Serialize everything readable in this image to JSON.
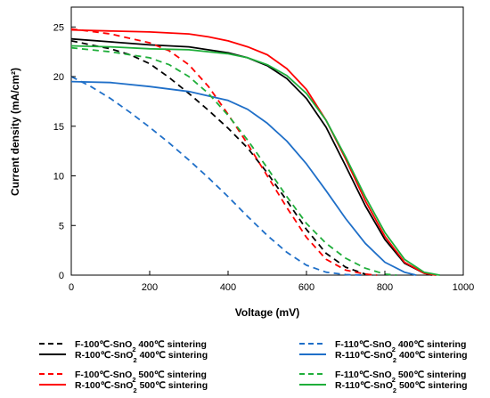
{
  "chart_data": {
    "type": "line",
    "title": "",
    "xlabel": "Voltage (mV)",
    "ylabel": "Current density (mA/cm²)",
    "xlim": [
      0,
      1000
    ],
    "ylim": [
      0,
      27
    ],
    "xticks": [
      0,
      200,
      400,
      600,
      800,
      1000
    ],
    "yticks": [
      0,
      5,
      10,
      15,
      20,
      25
    ],
    "grid": false,
    "legend_position": "bottom",
    "series": [
      {
        "name_parts": [
          "F-100℃-SnO",
          "2",
          " 400℃ sintering"
        ],
        "color": "#000000",
        "dash": true,
        "x": [
          0,
          50,
          100,
          150,
          200,
          250,
          300,
          350,
          400,
          450,
          500,
          550,
          600,
          650,
          700,
          750,
          770
        ],
        "y": [
          23.6,
          23.2,
          22.8,
          22.2,
          21.3,
          19.9,
          18.3,
          16.6,
          14.8,
          12.8,
          10.3,
          7.5,
          4.6,
          2.2,
          0.8,
          0.1,
          0
        ]
      },
      {
        "name_parts": [
          "R-100℃-SnO",
          "2",
          " 400℃ sintering"
        ],
        "color": "#000000",
        "dash": false,
        "x": [
          0,
          100,
          200,
          300,
          400,
          450,
          500,
          550,
          600,
          650,
          700,
          750,
          800,
          850,
          900,
          920
        ],
        "y": [
          23.8,
          23.5,
          23.2,
          23.0,
          22.4,
          21.9,
          21.1,
          19.8,
          17.8,
          14.9,
          11.0,
          7.0,
          3.6,
          1.2,
          0.2,
          0
        ]
      },
      {
        "name_parts": [
          "R-100℃-SnO",
          "2",
          " 500℃ sintering"
        ],
        "color": "#ff0000",
        "dash": false,
        "x": [
          0,
          100,
          200,
          300,
          350,
          400,
          450,
          500,
          550,
          600,
          650,
          700,
          750,
          800,
          850,
          900,
          930
        ],
        "y": [
          24.7,
          24.6,
          24.5,
          24.3,
          24.0,
          23.6,
          23.0,
          22.2,
          20.8,
          18.7,
          15.6,
          11.7,
          7.5,
          3.9,
          1.3,
          0.2,
          0
        ]
      },
      {
        "name_parts": [
          "F-100℃-SnO",
          "2",
          " 500℃ sintering"
        ],
        "color": "#ff0000",
        "dash": true,
        "x": [
          0,
          100,
          200,
          250,
          300,
          350,
          400,
          450,
          500,
          550,
          600,
          650,
          700,
          750,
          780
        ],
        "y": [
          24.8,
          24.3,
          23.4,
          22.6,
          21.2,
          19.0,
          16.2,
          13.2,
          10.0,
          6.8,
          3.8,
          1.6,
          0.5,
          0.1,
          0
        ]
      },
      {
        "name_parts": [
          "R-110℃-SnO",
          "2",
          " 400℃ sintering"
        ],
        "color": "#1f6fc8",
        "dash": false,
        "x": [
          0,
          100,
          200,
          300,
          400,
          450,
          500,
          550,
          600,
          650,
          700,
          750,
          800,
          850,
          880
        ],
        "y": [
          19.5,
          19.4,
          19.0,
          18.5,
          17.6,
          16.7,
          15.3,
          13.5,
          11.2,
          8.5,
          5.7,
          3.2,
          1.3,
          0.3,
          0
        ]
      },
      {
        "name_parts": [
          "F-110℃-SnO",
          "2",
          " 400℃ sintering"
        ],
        "color": "#1f6fc8",
        "dash": true,
        "x": [
          0,
          50,
          100,
          150,
          200,
          250,
          300,
          350,
          400,
          450,
          500,
          550,
          600,
          650,
          700,
          740
        ],
        "y": [
          20.0,
          19.0,
          17.8,
          16.4,
          14.9,
          13.3,
          11.6,
          9.8,
          7.9,
          5.9,
          4.0,
          2.3,
          1.0,
          0.3,
          0.05,
          0
        ]
      },
      {
        "name_parts": [
          "R-110℃-SnO",
          "2",
          " 500℃ sintering"
        ],
        "color": "#1fae3a",
        "dash": false,
        "x": [
          0,
          100,
          200,
          300,
          400,
          450,
          500,
          550,
          600,
          650,
          700,
          750,
          800,
          850,
          900,
          940
        ],
        "y": [
          23.1,
          23.0,
          22.8,
          22.7,
          22.3,
          21.9,
          21.2,
          20.1,
          18.3,
          15.6,
          11.9,
          7.9,
          4.3,
          1.6,
          0.3,
          0
        ]
      },
      {
        "name_parts": [
          "F-110℃-SnO",
          "2",
          " 500℃ sintering"
        ],
        "color": "#1fae3a",
        "dash": true,
        "x": [
          0,
          100,
          200,
          250,
          300,
          350,
          400,
          450,
          500,
          550,
          600,
          650,
          700,
          750,
          800,
          830
        ],
        "y": [
          22.9,
          22.5,
          21.9,
          21.2,
          20.0,
          18.3,
          16.1,
          13.6,
          10.8,
          7.9,
          5.2,
          3.2,
          1.7,
          0.7,
          0.1,
          0
        ]
      }
    ]
  },
  "legend_layout": [
    [
      0,
      5
    ],
    [
      1,
      4
    ],
    [
      3,
      7
    ],
    [
      2,
      6
    ]
  ]
}
